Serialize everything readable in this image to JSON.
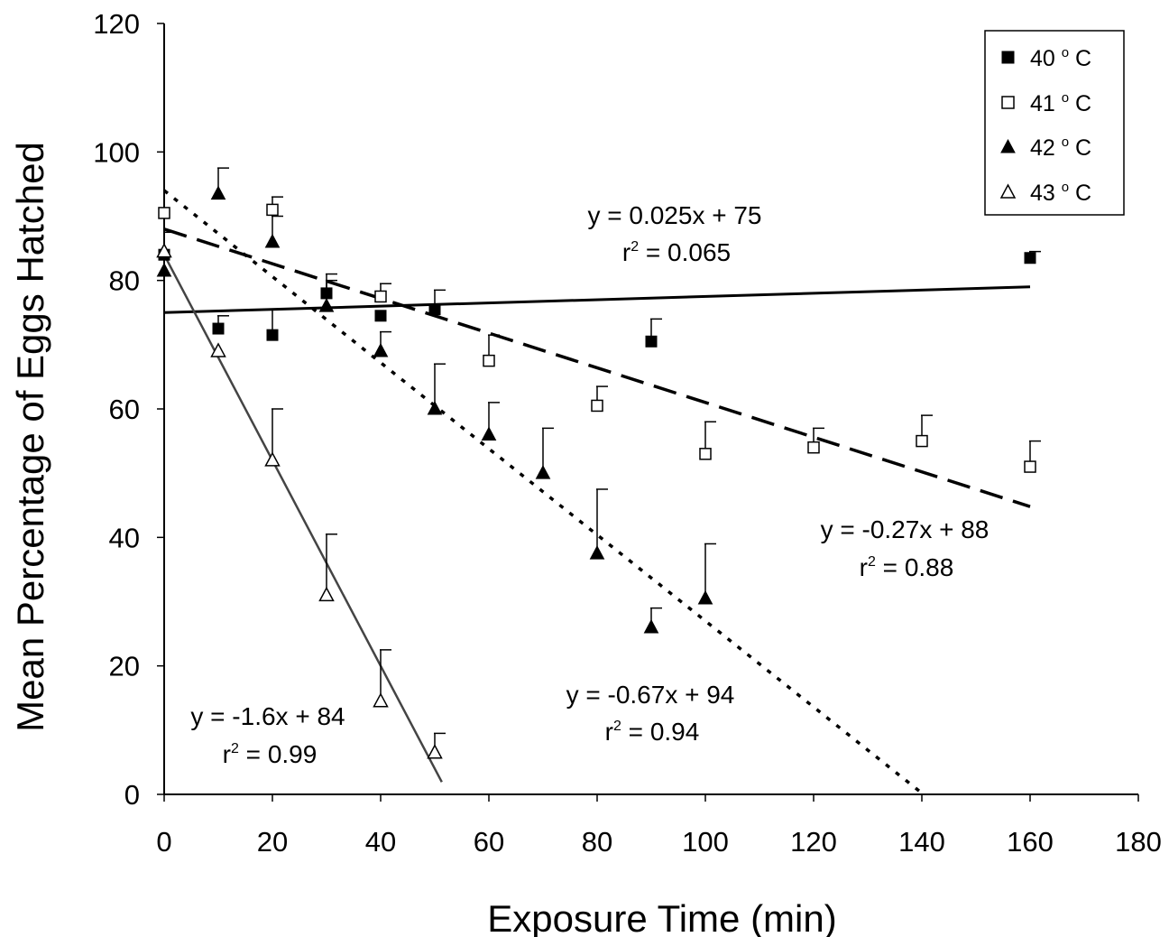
{
  "chart_data": {
    "type": "scatter",
    "title": "",
    "xlabel": "Exposure Time (min)",
    "ylabel": "Mean Percentage of Eggs Hatched",
    "xlim": [
      0,
      180
    ],
    "ylim": [
      0,
      120
    ],
    "xticks": [
      "0",
      "20",
      "40",
      "60",
      "80",
      "100",
      "120",
      "140",
      "160",
      "180"
    ],
    "yticks": [
      "0",
      "20",
      "40",
      "60",
      "80",
      "100",
      "120"
    ],
    "grid": false,
    "legend_position": "top-right",
    "series": [
      {
        "key": "s40",
        "name": "40 °C",
        "legend_parts": [
          "40 ",
          "o",
          " C"
        ],
        "marker": "square-filled",
        "line_style": "solid",
        "points": [
          {
            "x": 0,
            "y": 84,
            "err": 0
          },
          {
            "x": 10,
            "y": 72.5,
            "err": 2
          },
          {
            "x": 20,
            "y": 71.5,
            "err": 4
          },
          {
            "x": 30,
            "y": 78,
            "err": 3
          },
          {
            "x": 40,
            "y": 74.5,
            "err": 0
          },
          {
            "x": 50,
            "y": 75.5,
            "err": 3
          },
          {
            "x": 90,
            "y": 70.5,
            "err": 3.5
          },
          {
            "x": 160,
            "y": 83.5,
            "err": 1
          }
        ],
        "fit": {
          "slope": 0.025,
          "intercept": 75,
          "x_range": [
            0,
            160
          ]
        },
        "equation": "y = 0.025x + 75",
        "r2_prefix": "r",
        "r2_sup": "2",
        "r2_value": " = 0.065"
      },
      {
        "key": "s41",
        "name": "41 °C",
        "legend_parts": [
          "41 ",
          "o",
          " C"
        ],
        "marker": "square-open",
        "line_style": "long-dash",
        "points": [
          {
            "x": 0,
            "y": 90.5,
            "err": 0
          },
          {
            "x": 20,
            "y": 91,
            "err": 2
          },
          {
            "x": 40,
            "y": 77.5,
            "err": 2
          },
          {
            "x": 60,
            "y": 67.5,
            "err": 4
          },
          {
            "x": 80,
            "y": 60.5,
            "err": 3
          },
          {
            "x": 100,
            "y": 53,
            "err": 5
          },
          {
            "x": 120,
            "y": 54,
            "err": 3
          },
          {
            "x": 140,
            "y": 55,
            "err": 4
          },
          {
            "x": 160,
            "y": 51,
            "err": 4
          }
        ],
        "fit": {
          "slope": -0.27,
          "intercept": 88,
          "x_range": [
            0,
            160
          ]
        },
        "equation": "y = -0.27x + 88",
        "r2_prefix": "r",
        "r2_sup": "2",
        "r2_value": " = 0.88"
      },
      {
        "key": "s42",
        "name": "42 °C",
        "legend_parts": [
          "42 ",
          "o",
          " C"
        ],
        "marker": "triangle-filled",
        "line_style": "dotted",
        "points": [
          {
            "x": 0,
            "y": 81.5,
            "err": 6
          },
          {
            "x": 10,
            "y": 93.5,
            "err": 4
          },
          {
            "x": 20,
            "y": 86,
            "err": 4
          },
          {
            "x": 30,
            "y": 76,
            "err": 4
          },
          {
            "x": 40,
            "y": 69,
            "err": 3
          },
          {
            "x": 50,
            "y": 60,
            "err": 7
          },
          {
            "x": 60,
            "y": 56,
            "err": 5
          },
          {
            "x": 70,
            "y": 50,
            "err": 7
          },
          {
            "x": 80,
            "y": 37.5,
            "err": 10
          },
          {
            "x": 90,
            "y": 26,
            "err": 3
          },
          {
            "x": 100,
            "y": 30.5,
            "err": 8.5
          }
        ],
        "fit": {
          "slope": -0.67,
          "intercept": 94,
          "x_range": [
            0,
            140.3
          ]
        },
        "equation": "y = -0.67x + 94",
        "r2_prefix": "r",
        "r2_sup": "2",
        "r2_value": " = 0.94"
      },
      {
        "key": "s43",
        "name": "43 °C",
        "legend_parts": [
          "43 ",
          "o",
          " C"
        ],
        "marker": "triangle-open",
        "line_style": "solid-thin",
        "points": [
          {
            "x": 0,
            "y": 84.5,
            "err": 0
          },
          {
            "x": 10,
            "y": 69,
            "err": 0
          },
          {
            "x": 20,
            "y": 52,
            "err": 8
          },
          {
            "x": 30,
            "y": 31,
            "err": 9.5
          },
          {
            "x": 40,
            "y": 14.5,
            "err": 8
          },
          {
            "x": 50,
            "y": 6.5,
            "err": 3
          }
        ],
        "fit": {
          "slope": -1.6,
          "intercept": 84,
          "x_range": [
            0,
            51.3
          ]
        },
        "equation": "y = -1.6x + 84",
        "r2_prefix": "r",
        "r2_sup": "2",
        "r2_value": " = 0.99"
      }
    ]
  }
}
